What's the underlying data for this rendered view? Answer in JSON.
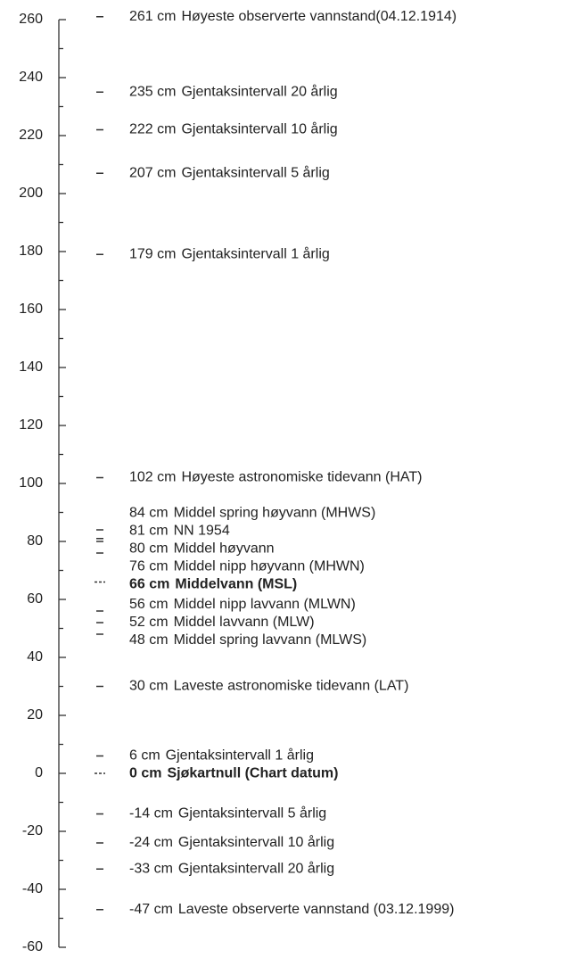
{
  "chart_data": {
    "type": "levels",
    "ylim": [
      -60,
      260
    ],
    "yticks": [
      -60,
      -40,
      -20,
      0,
      20,
      40,
      60,
      80,
      100,
      120,
      140,
      160,
      180,
      200,
      220,
      240,
      260
    ],
    "yminorticks": [
      -50,
      -30,
      -10,
      10,
      30,
      50,
      70,
      90,
      110,
      130,
      150,
      170,
      190,
      210,
      230,
      250
    ],
    "values": [
      261,
      235,
      222,
      207,
      179,
      102,
      84,
      81,
      80,
      76,
      66,
      56,
      52,
      48,
      30,
      6,
      0,
      -14,
      -24,
      -33,
      -47
    ],
    "value_labels": [
      "261 cm",
      "235 cm",
      "222 cm",
      "207 cm",
      "179 cm",
      "102 cm",
      "84 cm",
      "81 cm",
      "80 cm",
      "76 cm",
      "66 cm",
      "56 cm",
      "52 cm",
      "48 cm",
      "30 cm",
      "6 cm",
      "0 cm",
      "-14 cm",
      "-24 cm",
      "-33 cm",
      "-47 cm"
    ],
    "categories": [
      "Høyeste observerte vannstand(04.12.1914)",
      "Gjentaksintervall 20 årlig",
      "Gjentaksintervall 10 årlig",
      "Gjentaksintervall 5 årlig",
      "Gjentaksintervall 1 årlig",
      "Høyeste astronomiske tidevann (HAT)",
      "Middel spring høyvann (MHWS)",
      "NN 1954",
      "Middel høyvann",
      "Middel nipp høyvann (MHWN)",
      "Middelvann (MSL)",
      "Middel nipp lavvann (MLWN)",
      "Middel lavvann (MLW)",
      "Middel spring lavvann (MLWS)",
      "Laveste astronomiske tidevann (LAT)",
      "Gjentaksintervall 1 årlig",
      "Sjøkartnull (Chart datum)",
      "Gjentaksintervall 5 årlig",
      "Gjentaksintervall 10 årlig",
      "Gjentaksintervall 20 årlig",
      "Laveste observerte vannstand (03.12.1999)"
    ],
    "bold": [
      false,
      false,
      false,
      false,
      false,
      false,
      false,
      false,
      false,
      false,
      true,
      false,
      false,
      false,
      false,
      false,
      true,
      false,
      false,
      false,
      false
    ],
    "color": "#222222"
  }
}
